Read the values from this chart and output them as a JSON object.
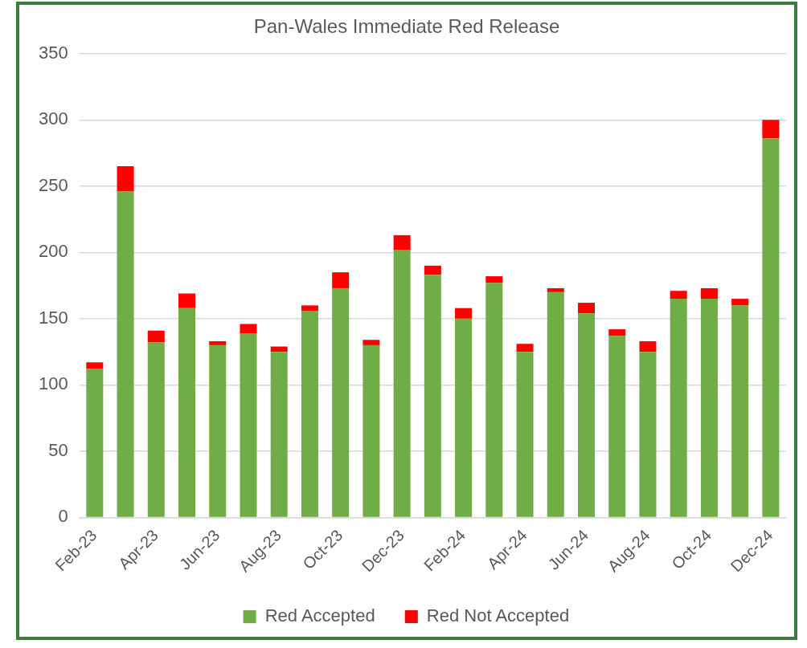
{
  "chart_data": {
    "type": "bar",
    "title": "Pan-Wales Immediate Red Release",
    "stacked": true,
    "categories": [
      "Feb-23",
      null,
      "Apr-23",
      null,
      "Jun-23",
      null,
      "Aug-23",
      null,
      "Oct-23",
      null,
      "Dec-23",
      null,
      "Feb-24",
      null,
      "Apr-24",
      null,
      "Jun-24",
      null,
      "Aug-24",
      null,
      "Oct-24",
      null,
      "Dec-24"
    ],
    "series": [
      {
        "name": "Red Accepted",
        "color": "#70ad47",
        "values": [
          112,
          246,
          132,
          158,
          130,
          139,
          125,
          156,
          173,
          130,
          202,
          183,
          150,
          177,
          125,
          170,
          154,
          137,
          125,
          165,
          165,
          160,
          286
        ]
      },
      {
        "name": "Red Not Accepted",
        "color": "#ff0000",
        "values": [
          5,
          19,
          9,
          11,
          3,
          7,
          4,
          4,
          12,
          4,
          11,
          7,
          8,
          5,
          6,
          3,
          8,
          5,
          8,
          6,
          8,
          5,
          14
        ]
      }
    ],
    "ylim": [
      0,
      350
    ],
    "yticks": [
      0,
      50,
      100,
      150,
      200,
      250,
      300,
      350
    ],
    "grid": "y",
    "legend": "bottom"
  }
}
